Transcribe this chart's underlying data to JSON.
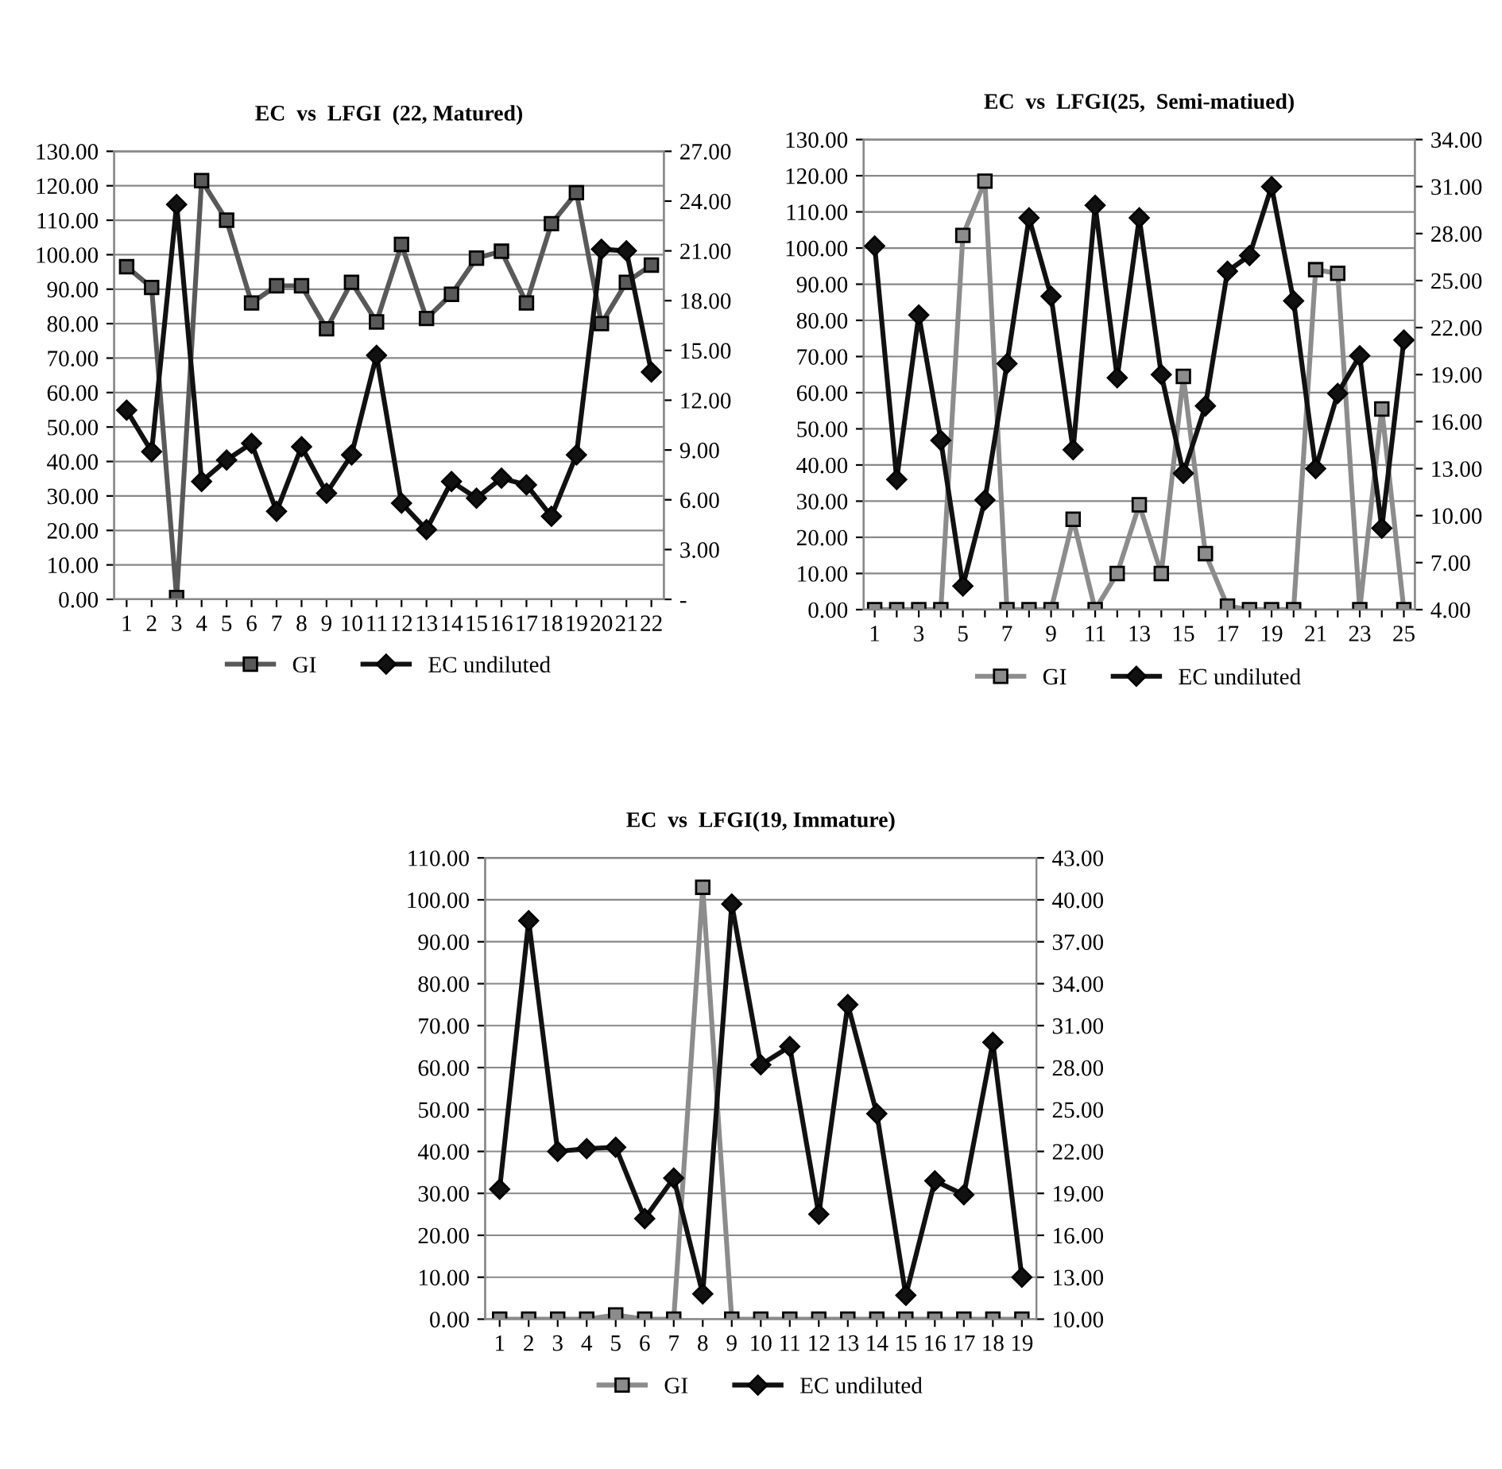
{
  "chart_data": [
    {
      "type": "line",
      "title": "EC  vs  LFGI  (22, Matured)",
      "categories": [
        "1",
        "2",
        "3",
        "4",
        "5",
        "6",
        "7",
        "8",
        "9",
        "10",
        "11",
        "12",
        "13",
        "14",
        "15",
        "16",
        "17",
        "18",
        "19",
        "20",
        "21",
        "22"
      ],
      "series": [
        {
          "name": "GI",
          "color": "#595959",
          "marker": "square",
          "values": [
            96.5,
            90.5,
            0.5,
            121.5,
            110,
            86,
            91,
            91,
            78.5,
            92,
            80.5,
            103,
            81.5,
            88.5,
            99,
            101,
            86,
            109,
            118,
            80,
            92,
            97
          ]
        },
        {
          "name": "EC undiluted",
          "color": "#111111",
          "marker": "diamond",
          "axis": "y2",
          "values": [
            11.4,
            8.9,
            23.8,
            7.1,
            8.4,
            9.4,
            5.3,
            9.2,
            6.4,
            8.7,
            14.7,
            5.8,
            4.2,
            7.1,
            6.1,
            7.3,
            6.9,
            5.0,
            8.7,
            21.1,
            21.0,
            13.7
          ]
        }
      ],
      "ylim": [
        0,
        130
      ],
      "yticks": [
        {
          "value": 0,
          "label": "0.00"
        },
        {
          "value": 10,
          "label": "10.00"
        },
        {
          "value": 20,
          "label": "20.00"
        },
        {
          "value": 30,
          "label": "30.00"
        },
        {
          "value": 40,
          "label": "40.00"
        },
        {
          "value": 50,
          "label": "50.00"
        },
        {
          "value": 60,
          "label": "60.00"
        },
        {
          "value": 70,
          "label": "70.00"
        },
        {
          "value": 80,
          "label": "80.00"
        },
        {
          "value": 90,
          "label": "90.00"
        },
        {
          "value": 100,
          "label": "100.00"
        },
        {
          "value": 110,
          "label": "110.00"
        },
        {
          "value": 120,
          "label": "120.00"
        },
        {
          "value": 130,
          "label": "130.00"
        }
      ],
      "y2lim": [
        0,
        27
      ],
      "y2ticks": [
        {
          "value": 0,
          "label": "-"
        },
        {
          "value": 3,
          "label": "3.00"
        },
        {
          "value": 6,
          "label": "6.00"
        },
        {
          "value": 9,
          "label": "9.00"
        },
        {
          "value": 12,
          "label": "12.00"
        },
        {
          "value": 15,
          "label": "15.00"
        },
        {
          "value": 18,
          "label": "18.00"
        },
        {
          "value": 21,
          "label": "21.00"
        },
        {
          "value": 24,
          "label": "24.00"
        },
        {
          "value": 27,
          "label": "27.00"
        }
      ],
      "grid": "y",
      "legend": "bottom"
    },
    {
      "type": "line",
      "title": "EC  vs  LFGI(25,  Semi-matiued)",
      "categories": [
        "1",
        null,
        "3",
        null,
        "5",
        null,
        "7",
        null,
        "9",
        null,
        "11",
        null,
        "13",
        null,
        "15",
        null,
        "17",
        null,
        "19",
        null,
        "21",
        null,
        "23",
        null,
        "25"
      ],
      "series": [
        {
          "name": "GI",
          "color": "#8c8c8c",
          "marker": "square",
          "values": [
            0,
            0,
            0,
            0,
            103.5,
            118.5,
            0,
            0,
            0,
            25,
            0,
            10,
            29,
            10,
            64.5,
            15.5,
            1,
            0,
            0,
            0,
            94,
            93,
            0,
            55.5,
            0
          ]
        },
        {
          "name": "EC undiluted",
          "color": "#111111",
          "marker": "diamond",
          "axis": "y2",
          "values": [
            27.2,
            12.3,
            22.8,
            14.8,
            5.5,
            11.0,
            19.7,
            29.0,
            24.0,
            14.2,
            29.8,
            18.8,
            29.0,
            19.0,
            12.7,
            17.0,
            25.6,
            26.6,
            31.0,
            23.7,
            13.0,
            17.8,
            20.2,
            9.2,
            21.2
          ]
        }
      ],
      "ylim": [
        0,
        130
      ],
      "yticks": [
        {
          "value": 0,
          "label": "0.00"
        },
        {
          "value": 10,
          "label": "10.00"
        },
        {
          "value": 20,
          "label": "20.00"
        },
        {
          "value": 30,
          "label": "30.00"
        },
        {
          "value": 40,
          "label": "40.00"
        },
        {
          "value": 50,
          "label": "50.00"
        },
        {
          "value": 60,
          "label": "60.00"
        },
        {
          "value": 70,
          "label": "70.00"
        },
        {
          "value": 80,
          "label": "80.00"
        },
        {
          "value": 90,
          "label": "90.00"
        },
        {
          "value": 100,
          "label": "100.00"
        },
        {
          "value": 110,
          "label": "110.00"
        },
        {
          "value": 120,
          "label": "120.00"
        },
        {
          "value": 130,
          "label": "130.00"
        }
      ],
      "y2lim": [
        4,
        34
      ],
      "y2ticks": [
        {
          "value": 4,
          "label": "4.00"
        },
        {
          "value": 7,
          "label": "7.00"
        },
        {
          "value": 10,
          "label": "10.00"
        },
        {
          "value": 13,
          "label": "13.00"
        },
        {
          "value": 16,
          "label": "16.00"
        },
        {
          "value": 19,
          "label": "19.00"
        },
        {
          "value": 22,
          "label": "22.00"
        },
        {
          "value": 25,
          "label": "25.00"
        },
        {
          "value": 28,
          "label": "28.00"
        },
        {
          "value": 31,
          "label": "31.00"
        },
        {
          "value": 34,
          "label": "34.00"
        }
      ],
      "grid": "y",
      "legend": "bottom"
    },
    {
      "type": "line",
      "title": "EC  vs  LFGI(19, Immature)",
      "categories": [
        "1",
        "2",
        "3",
        "4",
        "5",
        "6",
        "7",
        "8",
        "9",
        "10",
        "11",
        "12",
        "13",
        "14",
        "15",
        "16",
        "17",
        "18",
        "19"
      ],
      "series": [
        {
          "name": "GI",
          "color": "#8c8c8c",
          "marker": "square",
          "values": [
            0,
            0,
            0,
            0,
            1,
            0,
            0,
            103,
            0,
            0,
            0,
            0,
            0,
            0,
            0,
            0,
            0,
            0,
            0
          ]
        },
        {
          "name": "EC undiluted",
          "color": "#111111",
          "marker": "diamond",
          "axis": "y2",
          "values": [
            19.3,
            38.5,
            22.0,
            22.2,
            22.3,
            17.2,
            20.1,
            11.8,
            39.7,
            28.2,
            29.5,
            17.5,
            32.5,
            24.7,
            11.7,
            19.9,
            18.9,
            29.8,
            13.0
          ]
        }
      ],
      "ylim": [
        0,
        110
      ],
      "yticks": [
        {
          "value": 0,
          "label": "0.00"
        },
        {
          "value": 10,
          "label": "10.00"
        },
        {
          "value": 20,
          "label": "20.00"
        },
        {
          "value": 30,
          "label": "30.00"
        },
        {
          "value": 40,
          "label": "40.00"
        },
        {
          "value": 50,
          "label": "50.00"
        },
        {
          "value": 60,
          "label": "60.00"
        },
        {
          "value": 70,
          "label": "70.00"
        },
        {
          "value": 80,
          "label": "80.00"
        },
        {
          "value": 90,
          "label": "90.00"
        },
        {
          "value": 100,
          "label": "100.00"
        },
        {
          "value": 110,
          "label": "110.00"
        }
      ],
      "y2lim": [
        10,
        43
      ],
      "y2ticks": [
        {
          "value": 10,
          "label": "10.00"
        },
        {
          "value": 13,
          "label": "13.00"
        },
        {
          "value": 16,
          "label": "16.00"
        },
        {
          "value": 19,
          "label": "19.00"
        },
        {
          "value": 22,
          "label": "22.00"
        },
        {
          "value": 25,
          "label": "25.00"
        },
        {
          "value": 28,
          "label": "28.00"
        },
        {
          "value": 31,
          "label": "31.00"
        },
        {
          "value": 34,
          "label": "34.00"
        },
        {
          "value": 37,
          "label": "37.00"
        },
        {
          "value": 40,
          "label": "40.00"
        },
        {
          "value": 43,
          "label": "43.00"
        }
      ],
      "grid": "y",
      "legend": "bottom"
    }
  ]
}
